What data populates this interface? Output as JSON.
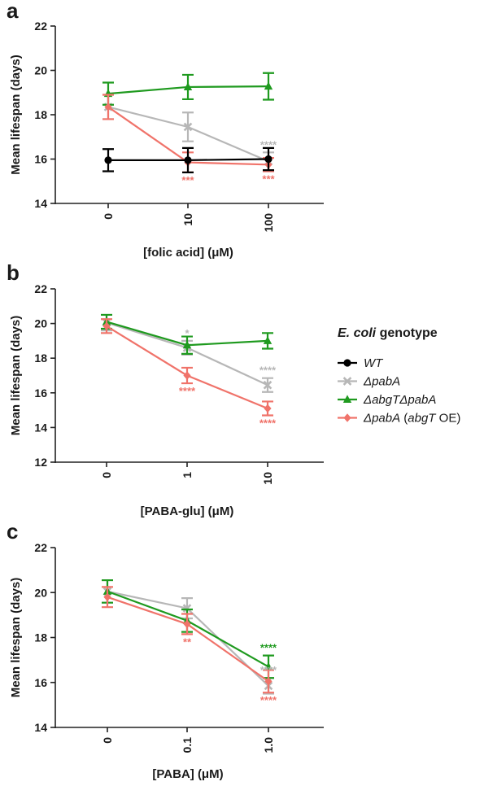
{
  "colors": {
    "WT": "#000000",
    "pabA": "#b7b7b7",
    "abgTpabA": "#1f9a1f",
    "pabA_abgT_OE": "#f0736a"
  },
  "legend": {
    "title_italic": "E. coli",
    "title_rest": " genotype",
    "entries": [
      {
        "key": "WT",
        "marker": "circle",
        "parts": [
          {
            "t": "WT",
            "i": true
          }
        ]
      },
      {
        "key": "pabA",
        "marker": "x",
        "parts": [
          {
            "t": "ΔpabA",
            "i": true
          }
        ]
      },
      {
        "key": "abgTpabA",
        "marker": "triangle",
        "parts": [
          {
            "t": "ΔabgTΔpabA",
            "i": true
          }
        ]
      },
      {
        "key": "pabA_abgT_OE",
        "marker": "diamond",
        "parts": [
          {
            "t": "ΔpabA",
            "i": true
          },
          {
            "t": " (",
            "i": false
          },
          {
            "t": "abgT",
            "i": true
          },
          {
            "t": " OE)",
            "i": false
          }
        ]
      }
    ]
  },
  "chart_data": [
    {
      "panel": "a",
      "type": "line",
      "xlabel": "[folic acid] (μM)",
      "ylabel": "Mean lifespan (days)",
      "categories": [
        "0",
        "10",
        "100"
      ],
      "ylim": [
        14,
        22
      ],
      "yticks": [
        14,
        16,
        18,
        20,
        22
      ],
      "series": [
        {
          "key": "WT",
          "name": "WT",
          "values": [
            15.95,
            15.95,
            16.0
          ],
          "errors": [
            0.5,
            0.55,
            0.5
          ]
        },
        {
          "key": "pabA",
          "name": "ΔpabA",
          "values": [
            18.35,
            17.45,
            15.9
          ],
          "errors": [
            0.55,
            0.65,
            0.4
          ]
        },
        {
          "key": "abgTpabA",
          "name": "ΔabgTΔpabA",
          "values": [
            18.95,
            19.25,
            19.28
          ],
          "errors": [
            0.5,
            0.55,
            0.6
          ]
        },
        {
          "key": "pabA_abgT_OE",
          "name": "ΔpabA (abgT OE)",
          "values": [
            18.35,
            15.85,
            15.75
          ],
          "errors": [
            0.55,
            0.45,
            0.3
          ]
        }
      ],
      "annotations": [
        {
          "series": "pabA",
          "x": "100",
          "text": "****",
          "pos": "above"
        },
        {
          "series": "pabA_abgT_OE",
          "x": "10",
          "text": "***",
          "pos": "below"
        },
        {
          "series": "pabA_abgT_OE",
          "x": "100",
          "text": "***",
          "pos": "below"
        }
      ]
    },
    {
      "panel": "b",
      "type": "line",
      "xlabel": "[PABA-glu] (μM)",
      "ylabel": "Mean lifespan (days)",
      "categories": [
        "0",
        "1",
        "10"
      ],
      "ylim": [
        12,
        22
      ],
      "yticks": [
        12,
        14,
        16,
        18,
        20,
        22
      ],
      "series": [
        {
          "key": "pabA",
          "name": "ΔpabA",
          "values": [
            20.05,
            18.6,
            16.45
          ],
          "errors": [
            0.45,
            0.4,
            0.4
          ]
        },
        {
          "key": "abgTpabA",
          "name": "ΔabgTΔpabA",
          "values": [
            20.1,
            18.75,
            19.0
          ],
          "errors": [
            0.4,
            0.5,
            0.45
          ]
        },
        {
          "key": "pabA_abgT_OE",
          "name": "ΔpabA (abgT OE)",
          "values": [
            19.85,
            17.0,
            15.1
          ],
          "errors": [
            0.4,
            0.45,
            0.4
          ]
        }
      ],
      "annotations": [
        {
          "series": "pabA",
          "x": "1",
          "text": "*",
          "pos": "above"
        },
        {
          "series": "pabA",
          "x": "10",
          "text": "****",
          "pos": "above"
        },
        {
          "series": "pabA_abgT_OE",
          "x": "1",
          "text": "****",
          "pos": "below"
        },
        {
          "series": "pabA_abgT_OE",
          "x": "10",
          "text": "****",
          "pos": "below"
        }
      ]
    },
    {
      "panel": "c",
      "type": "line",
      "xlabel": "[PABA] (μM)",
      "ylabel": "Mean lifespan (days)",
      "categories": [
        "0",
        "0.1",
        "1.0"
      ],
      "ylim": [
        14,
        22
      ],
      "yticks": [
        14,
        16,
        18,
        20,
        22
      ],
      "series": [
        {
          "key": "pabA",
          "name": "ΔpabA",
          "values": [
            20.05,
            19.3,
            15.85
          ],
          "errors": [
            0.5,
            0.45,
            0.35
          ]
        },
        {
          "key": "abgTpabA",
          "name": "ΔabgTΔpabA",
          "values": [
            20.05,
            18.75,
            16.7
          ],
          "errors": [
            0.5,
            0.5,
            0.5
          ]
        },
        {
          "key": "pabA_abgT_OE",
          "name": "ΔpabA (abgT OE)",
          "values": [
            19.8,
            18.6,
            16.05
          ],
          "errors": [
            0.45,
            0.45,
            0.5
          ]
        }
      ],
      "annotations": [
        {
          "series": "pabA",
          "x": "1.0",
          "text": "****",
          "pos": "above"
        },
        {
          "series": "abgTpabA",
          "x": "1.0",
          "text": "****",
          "pos": "above"
        },
        {
          "series": "pabA_abgT_OE",
          "x": "0.1",
          "text": "**",
          "pos": "below"
        },
        {
          "series": "pabA_abgT_OE",
          "x": "1.0",
          "text": "****",
          "pos": "below"
        }
      ]
    }
  ]
}
